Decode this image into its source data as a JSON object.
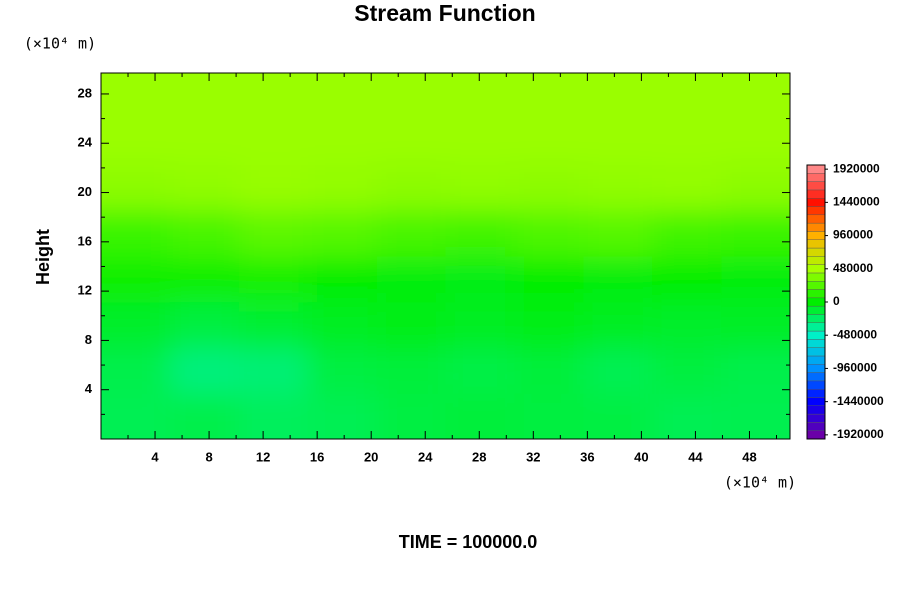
{
  "chart_data": {
    "type": "contour",
    "title": "Stream Function",
    "y_label": "Height",
    "y_unit": "(×10⁴ m)",
    "x_unit": "(×10⁴ m)",
    "footer": "TIME = 100000.0",
    "xlim": [
      0,
      51
    ],
    "ylim": [
      0,
      29.7
    ],
    "xticks": [
      4,
      8,
      12,
      16,
      20,
      24,
      28,
      32,
      36,
      40,
      44,
      48
    ],
    "yticks": [
      4,
      8,
      12,
      16,
      20,
      24,
      28
    ],
    "z": [
      [
        -200000,
        -180000,
        -220000,
        -200000,
        -160000,
        -140000,
        -150000,
        -160000,
        -200000,
        -190000
      ],
      [
        -180000,
        -300000,
        -280000,
        -160000,
        -140000,
        -170000,
        -140000,
        -200000,
        -150000,
        -180000
      ],
      [
        -100000,
        -150000,
        -120000,
        -80000,
        -60000,
        -80000,
        -60000,
        -80000,
        -100000,
        -90000
      ],
      [
        40000,
        20000,
        60000,
        0,
        -20000,
        -60000,
        -10000,
        -20000,
        0,
        -20000
      ],
      [
        160000,
        200000,
        260000,
        240000,
        200000,
        180000,
        220000,
        240000,
        180000,
        160000
      ],
      [
        400000,
        410000,
        430000,
        420000,
        400000,
        410000,
        400000,
        410000,
        420000,
        400000
      ],
      [
        440000,
        440000,
        440000,
        440000,
        440000,
        440000,
        440000,
        440000,
        440000,
        440000
      ],
      [
        440000,
        440000,
        440000,
        440000,
        440000,
        440000,
        440000,
        440000,
        440000,
        440000
      ]
    ],
    "clim": [
      -1980000,
      1980000
    ],
    "cticks": [
      -1920000,
      -1440000,
      -960000,
      -480000,
      0,
      480000,
      960000,
      1440000,
      1920000
    ],
    "ccolors": [
      "#6a00a8",
      "#0000ff",
      "#0090ff",
      "#00f0c8",
      "#00ee00",
      "#a8ff00",
      "#ffb000",
      "#ff1000",
      "#ff8888"
    ]
  }
}
